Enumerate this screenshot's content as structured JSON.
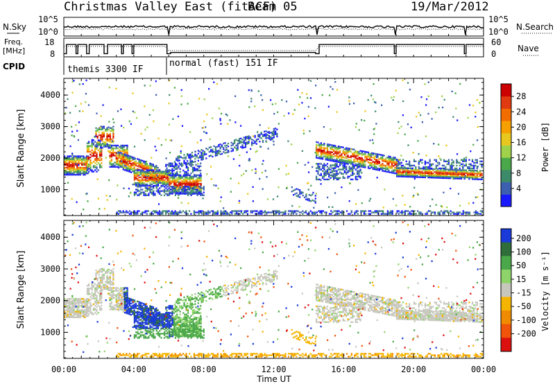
{
  "header": {
    "title": "Christmas Valley East (fitACF)",
    "beam": "Beam 05",
    "date": "19/Mar/2012"
  },
  "ancillary": {
    "nsky_label": "N.Sky",
    "nsearch_label": "N.Search",
    "nsky_ticks": [
      "10^5",
      "10^0"
    ],
    "freq_label_1": "Freq.",
    "freq_label_2": "[MHz]",
    "freq_ticks": [
      "18",
      "8"
    ],
    "nave_label": "Nave",
    "nave_ticks": [
      "60",
      "0"
    ],
    "cpid_label": "CPID",
    "cpid_segments": [
      {
        "label": "themis 3300 IF",
        "start_hour": 0.0,
        "end_hour": 6.0
      },
      {
        "label": "normal (fast) 151 IF",
        "start_hour": 6.0,
        "end_hour": 24.0
      }
    ]
  },
  "chart_data": [
    {
      "type": "heatmap",
      "title": "Power",
      "ylabel": "Slant Range [km]",
      "xlabel": "Time UT",
      "x_ticks": [
        "00:00",
        "04:00",
        "08:00",
        "12:00",
        "16:00",
        "20:00",
        "00:00"
      ],
      "xlim_hours": [
        0,
        24
      ],
      "y_ticks": [
        1000,
        2000,
        3000,
        4000
      ],
      "ylim": [
        180,
        4530
      ],
      "colorbar_label": "Power [dB]",
      "colorbar_ticks": [
        4,
        8,
        12,
        16,
        20,
        24,
        28
      ],
      "colorbar_colors": [
        "#1a1aff",
        "#3c5fb0",
        "#3d8a6a",
        "#4aa84a",
        "#9fd14a",
        "#e8c81e",
        "#f5a000",
        "#f26d00",
        "#e23a10",
        "#cc0000"
      ]
    },
    {
      "type": "heatmap",
      "title": "Velocity",
      "ylabel": "Slant Range [km]",
      "xlabel": "Time UT",
      "x_ticks": [
        "00:00",
        "04:00",
        "08:00",
        "12:00",
        "16:00",
        "20:00",
        "00:00"
      ],
      "xlim_hours": [
        0,
        24
      ],
      "y_ticks": [
        1000,
        2000,
        3000,
        4000
      ],
      "ylim": [
        180,
        4530
      ],
      "colorbar_label": "Velocity [m s⁻¹]",
      "colorbar_ticks": [
        200,
        100,
        50,
        15,
        -15,
        -50,
        -100,
        -200
      ],
      "colorbar_colors": [
        "#1a3ad9",
        "#2f6d3a",
        "#4aa84a",
        "#8fd46a",
        "#c7c7be",
        "#f5b400",
        "#f08a00",
        "#f0530a",
        "#dd1010"
      ]
    }
  ]
}
